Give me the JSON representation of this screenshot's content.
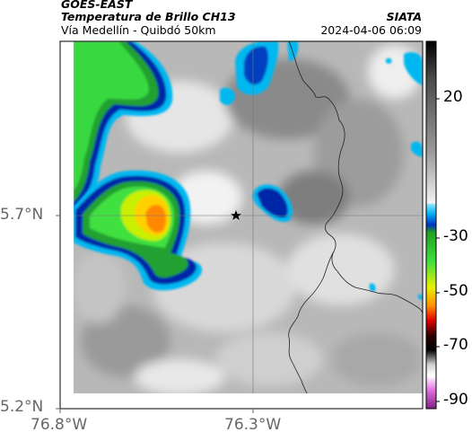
{
  "header": {
    "satellite": "GOES-EAST",
    "product": "Temperatura de Brillo CH13",
    "region": "Vía Medellín - Quibdó 50km",
    "org": "SIATA",
    "datetime": "2024-04-06 06:09"
  },
  "axes": {
    "lat_ticks": [
      "5.7°N",
      "5.2°N"
    ],
    "lon_ticks": [
      "76.8°W",
      "76.3°W"
    ]
  },
  "colorbar": {
    "ticks": [
      "20",
      "-30",
      "-50",
      "-70",
      "-90"
    ],
    "colors": {
      "warm_gray": "#9a9a9a",
      "cyan": "#00c8ff",
      "blue": "#0020a0",
      "green": "#20d020",
      "yellow": "#f0f000",
      "orange": "#ff8000",
      "red": "#e00000",
      "black": "#000000",
      "magenta": "#c050c0"
    }
  },
  "map": {
    "marker_icon": "star-icon",
    "background_color": "#b8b8b8"
  }
}
